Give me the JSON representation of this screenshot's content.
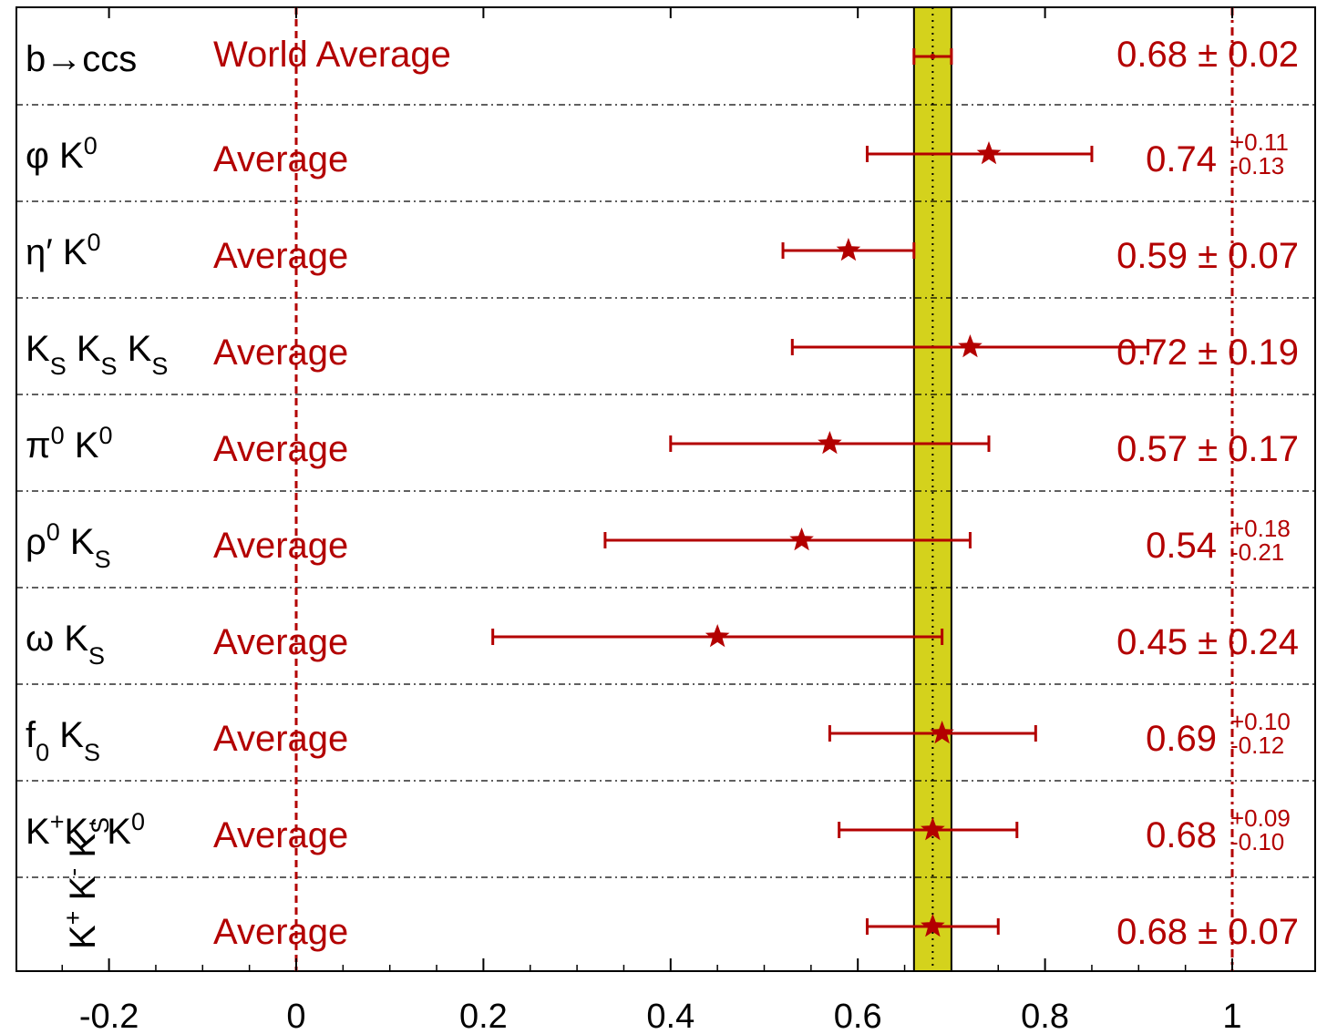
{
  "colors": {
    "accent": "#b30000",
    "band_fill": "#d4d21c",
    "band_stroke": "#000000",
    "text": "#000000"
  },
  "chart_data": {
    "type": "error-bar",
    "xlim": [
      -0.25,
      1.05
    ],
    "xticks": [
      "-0.2",
      "0",
      "0.2",
      "0.4",
      "0.6",
      "0.8",
      "1"
    ],
    "reference_lines": [
      0,
      1
    ],
    "band": {
      "center": 0.68,
      "low": 0.66,
      "high": 0.7
    },
    "grid": "dash-dot horizontal separators",
    "rows": [
      {
        "mode": "b→ccs",
        "label": "World Average",
        "value": 0.68,
        "err_minus": 0.02,
        "err_plus": 0.02,
        "text_value": "0.68 ± 0.02",
        "marker": "none"
      },
      {
        "mode": "φ K⁰",
        "label": "Average",
        "value": 0.74,
        "err_minus": 0.13,
        "err_plus": 0.11,
        "text_value": "0.74",
        "text_plus": "+0.11",
        "text_minus": "-0.13",
        "marker": "star"
      },
      {
        "mode": "η′ K⁰",
        "label": "Average",
        "value": 0.59,
        "err_minus": 0.07,
        "err_plus": 0.07,
        "text_value": "0.59 ± 0.07",
        "marker": "star"
      },
      {
        "mode": "KS KS KS",
        "label": "Average",
        "value": 0.72,
        "err_minus": 0.19,
        "err_plus": 0.19,
        "text_value": "0.72 ± 0.19",
        "marker": "star"
      },
      {
        "mode": "π⁰ K⁰",
        "label": "Average",
        "value": 0.57,
        "err_minus": 0.17,
        "err_plus": 0.17,
        "text_value": "0.57 ± 0.17",
        "marker": "star"
      },
      {
        "mode": "ρ⁰ KS",
        "label": "Average",
        "value": 0.54,
        "err_minus": 0.21,
        "err_plus": 0.18,
        "text_value": "0.54",
        "text_plus": "+0.18",
        "text_minus": "-0.21",
        "marker": "star"
      },
      {
        "mode": "ω KS",
        "label": "Average",
        "value": 0.45,
        "err_minus": 0.24,
        "err_plus": 0.24,
        "text_value": "0.45 ± 0.24",
        "marker": "star"
      },
      {
        "mode": "f0 KS",
        "label": "Average",
        "value": 0.69,
        "err_minus": 0.12,
        "err_plus": 0.1,
        "text_value": "0.69",
        "text_plus": "+0.10",
        "text_minus": "-0.12",
        "marker": "star"
      },
      {
        "mode": "K⁺K⁻ K⁰",
        "label": "Average",
        "value": 0.68,
        "err_minus": 0.1,
        "err_plus": 0.09,
        "text_value": "0.68",
        "text_plus": "+0.09",
        "text_minus": "-0.10",
        "marker": "star"
      },
      {
        "mode": "K⁺ K⁻ KS",
        "label": "Average",
        "value": 0.68,
        "err_minus": 0.07,
        "err_plus": 0.07,
        "text_value": "0.68 ± 0.07",
        "marker": "star"
      }
    ]
  }
}
